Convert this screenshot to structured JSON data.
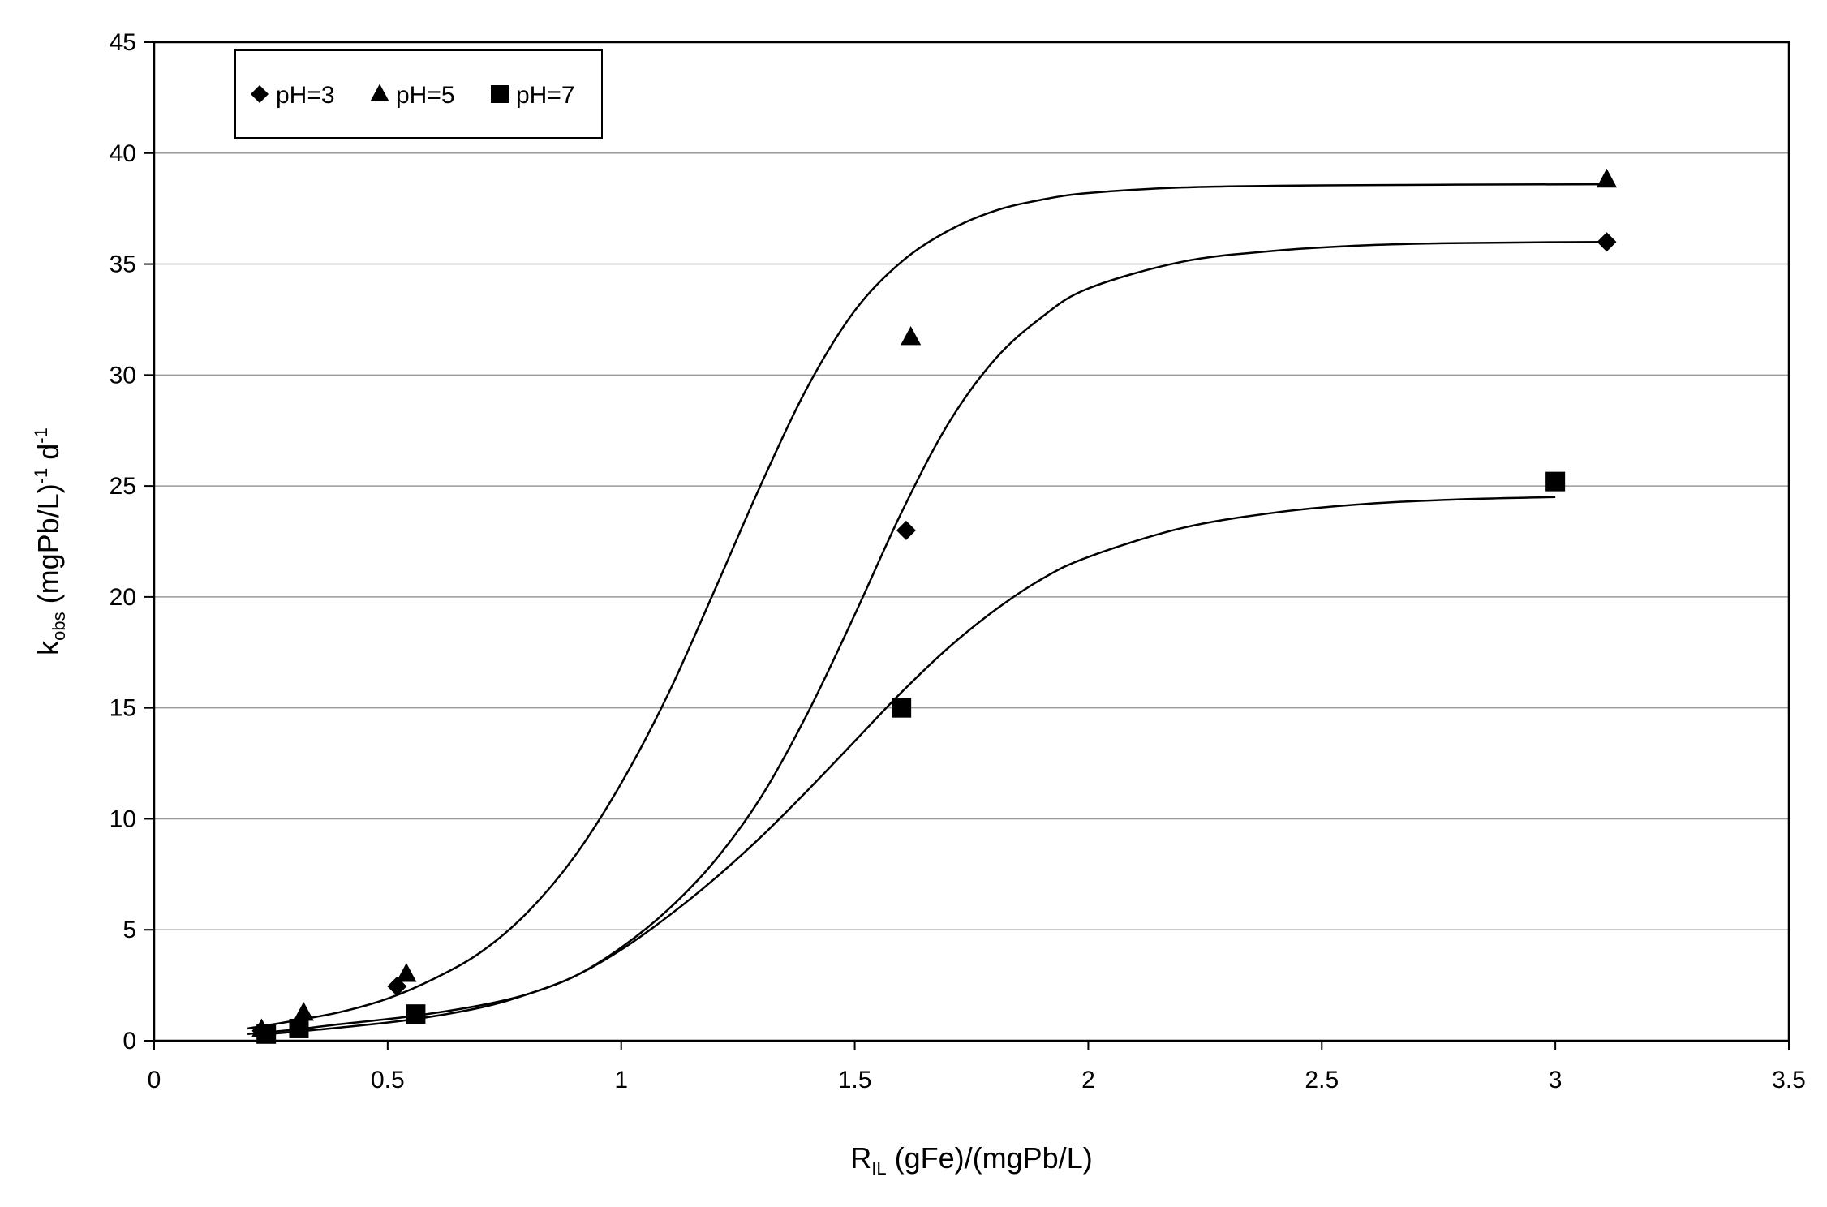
{
  "chart_data": {
    "type": "scatter",
    "title": "",
    "xlabel": {
      "main": "R",
      "sub": "IL",
      "rest": " (gFe)/(mgPb/L)"
    },
    "ylabel": {
      "main": "k",
      "sub": "obs",
      "mid": " (mgPb/L)",
      "sup1": "-1",
      "mid2": " d",
      "sup2": "-1"
    },
    "xlim": [
      0,
      3.5
    ],
    "ylim": [
      0,
      45
    ],
    "xticks": [
      0,
      0.5,
      1,
      1.5,
      2,
      2.5,
      3,
      3.5
    ],
    "xtick_labels": [
      "0",
      "0.5",
      "1",
      "1.5",
      "2",
      "2.5",
      "3",
      "3.5"
    ],
    "yticks": [
      0,
      5,
      10,
      15,
      20,
      25,
      30,
      35,
      40,
      45
    ],
    "ytick_labels": [
      "0",
      "5",
      "10",
      "15",
      "20",
      "25",
      "30",
      "35",
      "40",
      "45"
    ],
    "grid": {
      "y_major": true,
      "x_major": false
    },
    "legend": {
      "placement": "top-left",
      "boxed": true
    },
    "series": [
      {
        "name": "pH=3",
        "marker": "diamond",
        "color": "#000000",
        "points": [
          [
            0.23,
            0.45
          ],
          [
            0.31,
            0.65
          ],
          [
            0.52,
            2.45
          ],
          [
            1.61,
            23.0
          ],
          [
            3.11,
            36.0
          ]
        ],
        "fit_curve": [
          [
            0.2,
            0.3
          ],
          [
            0.3,
            0.5
          ],
          [
            0.4,
            0.75
          ],
          [
            0.55,
            1.1
          ],
          [
            0.7,
            1.6
          ],
          [
            0.8,
            2.1
          ],
          [
            0.9,
            2.9
          ],
          [
            1.0,
            4.2
          ],
          [
            1.1,
            5.9
          ],
          [
            1.2,
            8.1
          ],
          [
            1.3,
            11.0
          ],
          [
            1.4,
            14.8
          ],
          [
            1.5,
            19.2
          ],
          [
            1.6,
            23.8
          ],
          [
            1.7,
            27.8
          ],
          [
            1.8,
            30.7
          ],
          [
            1.9,
            32.6
          ],
          [
            2.0,
            33.9
          ],
          [
            2.2,
            35.1
          ],
          [
            2.4,
            35.6
          ],
          [
            2.6,
            35.85
          ],
          [
            2.8,
            35.95
          ],
          [
            3.11,
            36.0
          ]
        ]
      },
      {
        "name": "pH=5",
        "marker": "triangle",
        "color": "#000000",
        "points": [
          [
            0.23,
            0.5
          ],
          [
            0.32,
            1.25
          ],
          [
            0.54,
            3.0
          ],
          [
            1.62,
            31.7
          ],
          [
            3.11,
            38.8
          ]
        ],
        "fit_curve": [
          [
            0.2,
            0.55
          ],
          [
            0.3,
            0.9
          ],
          [
            0.4,
            1.3
          ],
          [
            0.5,
            1.9
          ],
          [
            0.6,
            2.8
          ],
          [
            0.7,
            4.0
          ],
          [
            0.8,
            5.8
          ],
          [
            0.9,
            8.3
          ],
          [
            1.0,
            11.6
          ],
          [
            1.1,
            15.6
          ],
          [
            1.2,
            20.3
          ],
          [
            1.3,
            25.1
          ],
          [
            1.4,
            29.5
          ],
          [
            1.5,
            32.9
          ],
          [
            1.6,
            35.1
          ],
          [
            1.7,
            36.5
          ],
          [
            1.8,
            37.4
          ],
          [
            1.9,
            37.9
          ],
          [
            2.0,
            38.2
          ],
          [
            2.2,
            38.45
          ],
          [
            2.5,
            38.55
          ],
          [
            3.11,
            38.6
          ]
        ]
      },
      {
        "name": "pH=7",
        "marker": "square",
        "color": "#000000",
        "points": [
          [
            0.24,
            0.3
          ],
          [
            0.31,
            0.55
          ],
          [
            0.56,
            1.2
          ],
          [
            1.6,
            15.0
          ],
          [
            3.0,
            25.2
          ]
        ],
        "fit_curve": [
          [
            0.22,
            0.25
          ],
          [
            0.3,
            0.4
          ],
          [
            0.4,
            0.6
          ],
          [
            0.55,
            0.95
          ],
          [
            0.7,
            1.5
          ],
          [
            0.8,
            2.1
          ],
          [
            0.9,
            2.9
          ],
          [
            1.0,
            4.1
          ],
          [
            1.1,
            5.6
          ],
          [
            1.2,
            7.3
          ],
          [
            1.3,
            9.2
          ],
          [
            1.4,
            11.3
          ],
          [
            1.5,
            13.5
          ],
          [
            1.6,
            15.7
          ],
          [
            1.7,
            17.7
          ],
          [
            1.8,
            19.4
          ],
          [
            1.9,
            20.8
          ],
          [
            2.0,
            21.8
          ],
          [
            2.2,
            23.1
          ],
          [
            2.4,
            23.8
          ],
          [
            2.6,
            24.2
          ],
          [
            2.8,
            24.4
          ],
          [
            3.0,
            24.5
          ]
        ]
      }
    ]
  }
}
